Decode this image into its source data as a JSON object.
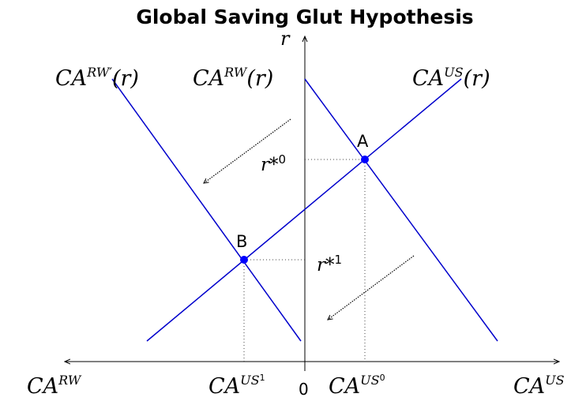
{
  "title": "Global Saving Glut Hypothesis",
  "axis": {
    "y_label": "r",
    "origin": "0",
    "x_left_label": {
      "base": "CA",
      "sup": "RW"
    },
    "x_right_label": {
      "base": "CA",
      "sup": "US"
    }
  },
  "curves": {
    "rw_shifted": {
      "base": "CA",
      "sup": "RW′",
      "arg": "(r)"
    },
    "rw": {
      "base": "CA",
      "sup": "RW",
      "arg": "(r)"
    },
    "us": {
      "base": "CA",
      "sup": "US",
      "arg": "(r)"
    }
  },
  "points": {
    "a": "A",
    "b": "B"
  },
  "rates": {
    "r0": {
      "base": "r*",
      "sup": "0"
    },
    "r1": {
      "base": "r*",
      "sup": "1"
    }
  },
  "ca_ticks": {
    "us0": {
      "base": "CA",
      "sup": "US",
      "subsup": "0"
    },
    "us1": {
      "base": "CA",
      "sup": "US",
      "subsup": "1"
    }
  },
  "colors": {
    "curve": "#0000cc",
    "point": "#0000ff",
    "axis": "#000000",
    "guide": "#444444"
  }
}
